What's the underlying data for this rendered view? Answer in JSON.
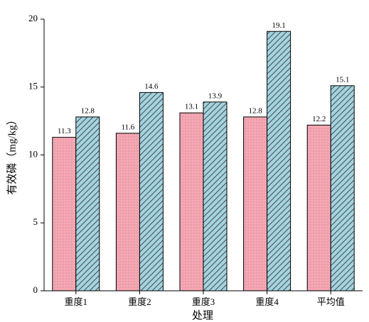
{
  "chart_data": {
    "type": "bar",
    "y_label": "有效磷（mg/kg）",
    "x_label": "处理",
    "categories": [
      "重度1",
      "重度2",
      "重度3",
      "重度4",
      "平均值"
    ],
    "series": [
      {
        "color": "#f5a8b4",
        "values": [
          11.3,
          11.6,
          13.1,
          12.8,
          12.2
        ]
      },
      {
        "color": "#a3d3df",
        "values": [
          12.8,
          14.6,
          13.9,
          19.1,
          15.1
        ]
      }
    ],
    "ylim": [
      0,
      20
    ],
    "yticks": [
      0,
      5,
      10,
      15,
      20
    ]
  }
}
